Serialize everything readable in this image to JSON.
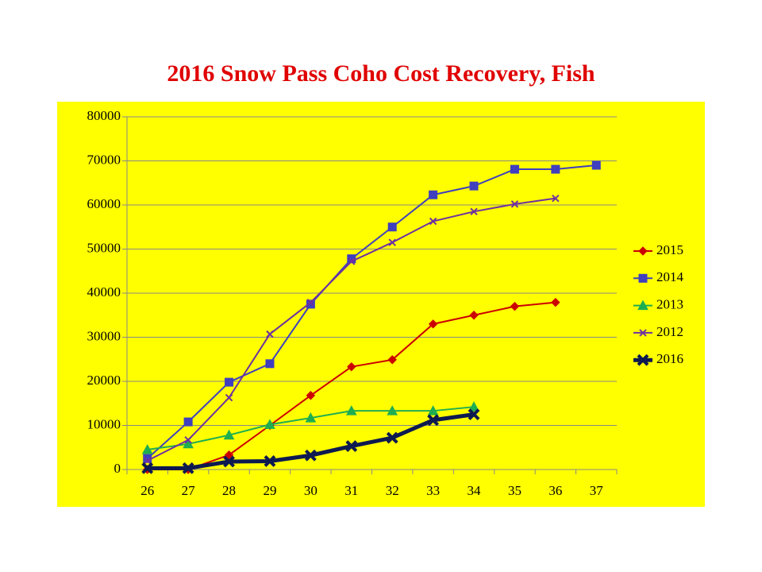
{
  "chart_data": {
    "type": "line",
    "title": "2016 Snow Pass Coho Cost Recovery,  Fish",
    "categories": [
      26,
      27,
      28,
      29,
      30,
      31,
      32,
      33,
      34,
      35,
      36,
      37
    ],
    "ylim": [
      0,
      80000
    ],
    "yticks": [
      0,
      10000,
      20000,
      30000,
      40000,
      50000,
      60000,
      70000,
      80000
    ],
    "grid": true,
    "legend": "right",
    "background": "#ffff00",
    "series": [
      {
        "name": "2015",
        "color": "#cc0000",
        "marker": "diamond",
        "width": 2,
        "values": [
          0,
          0,
          3300,
          10000,
          16800,
          23300,
          24900,
          33000,
          35000,
          37000,
          37900,
          null
        ]
      },
      {
        "name": "2014",
        "color": "#3f3fbf",
        "marker": "square",
        "width": 2,
        "values": [
          2500,
          10800,
          19800,
          24000,
          37500,
          47800,
          55000,
          62300,
          64300,
          68100,
          68100,
          69000
        ]
      },
      {
        "name": "2013",
        "color": "#1fae50",
        "marker": "triangle",
        "width": 2,
        "values": [
          4500,
          5800,
          7800,
          10200,
          11700,
          13300,
          13300,
          13300,
          14200,
          null,
          null,
          null
        ]
      },
      {
        "name": "2012",
        "color": "#7030a0",
        "marker": "x",
        "width": 2,
        "values": [
          2000,
          6700,
          16300,
          30700,
          37900,
          47200,
          51500,
          56300,
          58500,
          60200,
          61500,
          null
        ]
      },
      {
        "name": "2016",
        "color": "#0d1a50",
        "marker": "bigx",
        "width": 5,
        "values": [
          300,
          300,
          1800,
          1900,
          3200,
          5300,
          7200,
          11200,
          12500,
          null,
          null,
          null
        ]
      }
    ]
  }
}
